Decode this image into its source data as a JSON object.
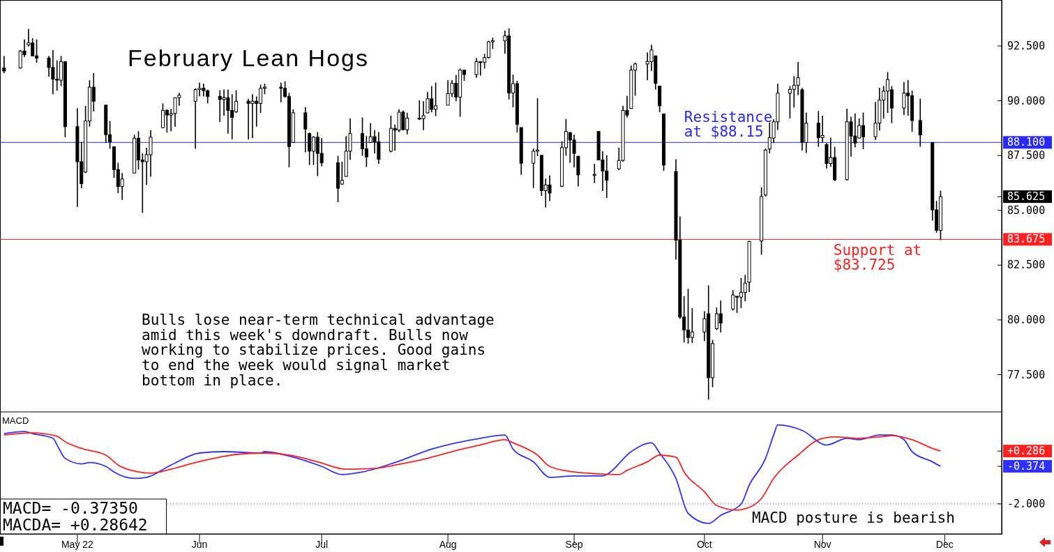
{
  "chart_data": [
    {
      "type": "candlestick",
      "title": "February Lean Hogs",
      "color": "#000000",
      "tick_labels": "y",
      "xlim": [
        "2022-04-13",
        "2022-12-15"
      ],
      "ylim": [
        75.8,
        94.6
      ],
      "yticks": [
        {
          "value": 77.5,
          "label": "77.500"
        },
        {
          "value": 80,
          "label": "80.000"
        },
        {
          "value": 82.5,
          "label": "82.500"
        },
        {
          "value": 85,
          "label": "85.000"
        },
        {
          "value": 85.625,
          "label": "85.625"
        },
        {
          "value": 87.5,
          "label": "87.500"
        },
        {
          "value": 90,
          "label": "90.000"
        },
        {
          "value": 92.5,
          "label": "92.500"
        }
      ],
      "ref_lines": [
        {
          "axis": "y",
          "value": 88.1,
          "label": "88.100",
          "color": "#2828ff"
        },
        {
          "axis": "y",
          "value": 83.675,
          "label": "83.675",
          "color": "#ff2020"
        }
      ],
      "annotations": [
        {
          "text": "Resistance\nat $88.15",
          "x": "2022-09-27",
          "y": 88.15
        },
        {
          "text": "Support at\n$83.725",
          "x": "2022-11-03",
          "y": 83.725
        },
        "Bulls lose near-term technical advantage\namid this week's downdraft. Bulls now\nworking to stabilize prices. Good gains\nto end the week would signal market\nbottom in place."
      ],
      "x": [
        "2022-04-14",
        "2022-04-18",
        "2022-04-19",
        "2022-04-20",
        "2022-04-21",
        "2022-04-22",
        "2022-04-25",
        "2022-04-26",
        "2022-04-27",
        "2022-04-28",
        "2022-04-29",
        "2022-05-02",
        "2022-05-03",
        "2022-05-04",
        "2022-05-05",
        "2022-05-06",
        "2022-05-09",
        "2022-05-10",
        "2022-05-11",
        "2022-05-12",
        "2022-05-13",
        "2022-05-16",
        "2022-05-17",
        "2022-05-18",
        "2022-05-19",
        "2022-05-20",
        "2022-05-23",
        "2022-05-24",
        "2022-05-25",
        "2022-05-26",
        "2022-05-27",
        "2022-05-31",
        "2022-06-01",
        "2022-06-02",
        "2022-06-03",
        "2022-06-06",
        "2022-06-07",
        "2022-06-08",
        "2022-06-09",
        "2022-06-10",
        "2022-06-13",
        "2022-06-14",
        "2022-06-15",
        "2022-06-16",
        "2022-06-17",
        "2022-06-21",
        "2022-06-22",
        "2022-06-23",
        "2022-06-24",
        "2022-06-27",
        "2022-06-28",
        "2022-06-29",
        "2022-06-30",
        "2022-07-01",
        "2022-07-05",
        "2022-07-06",
        "2022-07-07",
        "2022-07-08",
        "2022-07-11",
        "2022-07-12",
        "2022-07-13",
        "2022-07-14",
        "2022-07-15",
        "2022-07-18",
        "2022-07-19",
        "2022-07-20",
        "2022-07-21",
        "2022-07-22",
        "2022-07-25",
        "2022-07-26",
        "2022-07-27",
        "2022-07-28",
        "2022-07-29",
        "2022-08-01",
        "2022-08-02",
        "2022-08-03",
        "2022-08-04",
        "2022-08-05",
        "2022-08-08",
        "2022-08-09",
        "2022-08-10",
        "2022-08-11",
        "2022-08-12",
        "2022-08-15",
        "2022-08-16",
        "2022-08-17",
        "2022-08-18",
        "2022-08-19",
        "2022-08-22",
        "2022-08-23",
        "2022-08-24",
        "2022-08-25",
        "2022-08-26",
        "2022-08-29",
        "2022-08-30",
        "2022-08-31",
        "2022-09-01",
        "2022-09-02",
        "2022-09-06",
        "2022-09-07",
        "2022-09-08",
        "2022-09-09",
        "2022-09-12",
        "2022-09-13",
        "2022-09-14",
        "2022-09-15",
        "2022-09-16",
        "2022-09-19",
        "2022-09-20",
        "2022-09-21",
        "2022-09-22",
        "2022-09-23",
        "2022-09-26",
        "2022-09-27",
        "2022-09-28",
        "2022-09-29",
        "2022-09-30",
        "2022-10-03",
        "2022-10-04",
        "2022-10-05",
        "2022-10-06",
        "2022-10-07",
        "2022-10-10",
        "2022-10-11",
        "2022-10-12",
        "2022-10-13",
        "2022-10-14",
        "2022-10-17",
        "2022-10-18",
        "2022-10-19",
        "2022-10-20",
        "2022-10-21",
        "2022-10-24",
        "2022-10-25",
        "2022-10-26",
        "2022-10-27",
        "2022-10-28",
        "2022-10-31",
        "2022-11-01",
        "2022-11-02",
        "2022-11-03",
        "2022-11-04",
        "2022-11-07",
        "2022-11-08",
        "2022-11-09",
        "2022-11-10",
        "2022-11-11",
        "2022-11-14",
        "2022-11-15",
        "2022-11-16",
        "2022-11-17",
        "2022-11-18",
        "2022-11-21",
        "2022-11-22",
        "2022-11-23",
        "2022-11-25",
        "2022-11-28",
        "2022-11-29",
        "2022-11-30"
      ],
      "ohlc": [
        [
          91.5,
          92.05,
          91.26,
          91.36
        ],
        [
          91.5,
          92.32,
          91.47,
          92.27
        ],
        [
          92.27,
          92.8,
          92.0,
          92.11
        ],
        [
          92.55,
          93.28,
          92.48,
          92.64
        ],
        [
          92.64,
          92.85,
          92.05,
          92.05
        ],
        [
          92.05,
          92.8,
          91.74,
          91.95
        ],
        [
          91.95,
          92.05,
          91.1,
          91.52
        ],
        [
          91.52,
          92.32,
          90.3,
          90.99
        ],
        [
          90.99,
          91.84,
          90.46,
          90.94
        ],
        [
          90.94,
          92.05,
          90.67,
          91.79
        ],
        [
          91.79,
          91.79,
          88.34,
          88.82
        ],
        [
          88.82,
          89.66,
          85.16,
          87.22
        ],
        [
          87.22,
          88.13,
          86.01,
          86.22
        ],
        [
          86.75,
          89.77,
          86.7,
          89.08
        ],
        [
          89.08,
          90.94,
          88.82,
          90.62
        ],
        [
          90.62,
          91.26,
          89.51,
          89.98
        ],
        [
          89.8,
          89.82,
          88.08,
          88.45
        ],
        [
          88.45,
          89.08,
          87.81,
          88.13
        ],
        [
          87.9,
          87.91,
          86.48,
          86.86
        ],
        [
          86.86,
          87.17,
          85.79,
          86.09
        ],
        [
          86.09,
          86.7,
          85.48,
          86.43
        ],
        [
          86.7,
          88.45,
          86.7,
          88.29
        ],
        [
          88.29,
          88.61,
          86.86,
          87.3
        ],
        [
          87.3,
          87.6,
          84.89,
          87.22
        ],
        [
          87.22,
          87.86,
          86.16,
          87.54
        ],
        [
          87.54,
          88.66,
          86.54,
          88.34
        ],
        [
          88.77,
          89.88,
          88.77,
          89.56
        ],
        [
          89.56,
          89.61,
          88.55,
          89.35
        ],
        [
          89.35,
          89.63,
          88.61,
          89.42
        ],
        [
          89.42,
          90.14,
          88.82,
          90.14
        ],
        [
          90.14,
          90.36,
          89.77,
          90.25
        ],
        [
          89.98,
          90.57,
          87.81,
          90.51
        ],
        [
          90.51,
          90.83,
          90.2,
          90.57
        ],
        [
          90.57,
          90.78,
          90.2,
          90.46
        ],
        [
          90.46,
          90.51,
          89.88,
          90.2
        ],
        [
          90.2,
          90.48,
          89.03,
          90.06
        ],
        [
          90.06,
          90.51,
          89.32,
          90.14
        ],
        [
          90.14,
          90.51,
          88.5,
          89.56
        ],
        [
          89.56,
          90.3,
          88.24,
          89.24
        ],
        [
          89.5,
          90.48,
          89.45,
          89.98
        ],
        [
          89.98,
          90.09,
          88.24,
          89.88
        ],
        [
          89.88,
          90.3,
          88.29,
          89.98
        ],
        [
          89.98,
          90.2,
          88.82,
          89.88
        ],
        [
          89.88,
          90.73,
          89.45,
          90.57
        ],
        [
          90.57,
          90.78,
          90.3,
          90.62
        ],
        [
          90.62,
          90.83,
          89.93,
          90.57
        ],
        [
          90.57,
          90.89,
          90.14,
          90.2
        ],
        [
          90.2,
          90.36,
          86.96,
          87.91
        ],
        [
          88.1,
          89.61,
          88.08,
          89.45
        ],
        [
          89.45,
          89.72,
          87.65,
          88.71
        ],
        [
          88.5,
          88.55,
          87.07,
          87.7
        ],
        [
          87.7,
          88.39,
          87.07,
          88.34
        ],
        [
          88.34,
          88.57,
          86.56,
          87.6
        ],
        [
          87.6,
          88.29,
          87.01,
          87.17
        ],
        [
          87.17,
          87.49,
          85.37,
          86.01
        ],
        [
          86.2,
          87.22,
          86.16,
          86.37
        ],
        [
          86.55,
          88.39,
          86.54,
          87.7
        ],
        [
          87.7,
          89.19,
          87.3,
          88.5
        ],
        [
          88.5,
          89.24,
          87.49,
          87.81
        ],
        [
          87.81,
          88.39,
          86.98,
          87.44
        ],
        [
          88.1,
          88.98,
          88.07,
          88.36
        ],
        [
          88.36,
          88.66,
          87.6,
          88.13
        ],
        [
          88.13,
          88.57,
          87.12,
          87.33
        ],
        [
          87.7,
          89.32,
          87.65,
          88.74
        ],
        [
          88.74,
          88.92,
          87.72,
          88.66
        ],
        [
          88.66,
          89.61,
          88.57,
          89.48
        ],
        [
          89.48,
          89.56,
          88.66,
          88.68
        ],
        [
          88.68,
          89.45,
          88.47,
          89.21
        ],
        [
          89.21,
          90.02,
          89.14,
          89.19
        ],
        [
          89.19,
          89.98,
          88.66,
          89.32
        ],
        [
          89.45,
          90.41,
          89.42,
          90.09
        ],
        [
          90.09,
          90.67,
          89.48,
          89.61
        ],
        [
          89.61,
          90.83,
          89.3,
          89.77
        ],
        [
          89.8,
          90.94,
          89.8,
          90.33
        ],
        [
          90.33,
          90.94,
          90.17,
          90.8
        ],
        [
          90.8,
          91.18,
          89.98,
          90.17
        ],
        [
          90.17,
          91.47,
          89.27,
          91.4
        ],
        [
          91.4,
          91.42,
          90.91,
          91.2
        ],
        [
          91.2,
          91.95,
          91.05,
          91.79
        ],
        [
          91.79,
          91.79,
          91.15,
          91.76
        ],
        [
          91.76,
          92.14,
          91.47,
          91.97
        ],
        [
          91.97,
          92.74,
          91.93,
          92.69
        ],
        [
          92.69,
          92.88,
          92.37,
          92.74
        ],
        [
          92.74,
          93.2,
          92.14,
          92.96
        ],
        [
          92.96,
          93.31,
          90.06,
          90.36
        ],
        [
          90.36,
          91.2,
          89.7,
          90.78
        ],
        [
          90.78,
          90.91,
          88.55,
          88.92
        ],
        [
          88.78,
          88.78,
          86.62,
          87.15
        ],
        [
          87.15,
          87.83,
          86.02,
          87.7
        ],
        [
          87.7,
          90.12,
          87.47,
          87.75
        ],
        [
          87.51,
          87.51,
          85.66,
          85.9
        ],
        [
          85.9,
          86.45,
          85.13,
          86.16
        ],
        [
          86.16,
          86.59,
          85.42,
          85.79
        ],
        [
          86.1,
          88.15,
          86.06,
          87.86
        ],
        [
          87.86,
          89.17,
          87.49,
          88.6
        ],
        [
          88.55,
          88.57,
          87.17,
          88.21
        ],
        [
          88.21,
          88.45,
          86.96,
          87.6
        ],
        [
          87.47,
          87.47,
          86.09,
          86.62
        ],
        [
          86.62,
          87.12,
          86.24,
          86.64
        ],
        [
          88.6,
          88.61,
          87.3,
          87.3
        ],
        [
          87.3,
          87.7,
          85.88,
          86.8
        ],
        [
          86.8,
          87.51,
          85.56,
          86.37
        ],
        [
          86.9,
          87.86,
          86.83,
          87.28
        ],
        [
          87.28,
          89.77,
          87.22,
          89.56
        ],
        [
          89.56,
          90.23,
          89.24,
          89.35
        ],
        [
          89.65,
          91.61,
          89.63,
          91.4
        ],
        [
          91.4,
          91.74,
          90.23,
          91.68
        ],
        [
          91.68,
          92.21,
          90.94,
          91.79
        ],
        [
          91.79,
          92.56,
          91.36,
          92.32
        ],
        [
          92.05,
          92.05,
          90.51,
          90.8
        ],
        [
          90.67,
          90.67,
          89.48,
          89.77
        ],
        [
          89.4,
          89.4,
          86.8,
          87.07
        ],
        [
          86.77,
          87.33,
          82.75,
          83.64
        ],
        [
          83.64,
          84.72,
          80.05,
          80.13
        ],
        [
          80.13,
          81.08,
          78.97,
          79.54
        ],
        [
          79.54,
          81.42,
          78.92,
          79.2
        ],
        [
          79.2,
          80.54,
          78.95,
          79.45
        ],
        [
          79.45,
          80.4,
          79.03,
          80.05
        ],
        [
          80.28,
          81.57,
          76.36,
          77.36
        ],
        [
          77.36,
          79.09,
          76.93,
          78.92
        ],
        [
          79.6,
          80.57,
          79.54,
          80.28
        ],
        [
          80.28,
          80.88,
          79.43,
          79.86
        ],
        [
          80.5,
          81.36,
          80.43,
          81.14
        ],
        [
          81.08,
          81.08,
          80.32,
          81.04
        ],
        [
          81.04,
          81.91,
          80.54,
          81.25
        ],
        [
          81.25,
          82.05,
          80.85,
          81.68
        ],
        [
          81.72,
          83.61,
          81.27,
          83.58
        ],
        [
          83.6,
          86.05,
          82.98,
          85.63
        ],
        [
          85.7,
          87.82,
          85.63,
          87.75
        ],
        [
          87.8,
          89.01,
          87.6,
          88.32
        ],
        [
          88.3,
          89.15,
          88.07,
          89.04
        ],
        [
          89.04,
          90.78,
          88.67,
          90.35
        ],
        [
          90.35,
          90.67,
          89.19,
          90.52
        ],
        [
          90.52,
          91.12,
          89.69,
          90.71
        ],
        [
          90.71,
          91.77,
          90.26,
          91.05
        ],
        [
          90.5,
          90.58,
          87.73,
          88.1
        ],
        [
          88.1,
          89.46,
          87.62,
          88.98
        ],
        [
          88.98,
          89.53,
          87.9,
          88.32
        ],
        [
          88.32,
          89.32,
          88.1,
          88.41
        ],
        [
          88.0,
          88.07,
          86.91,
          87.14
        ],
        [
          87.14,
          88.32,
          86.99,
          87.41
        ],
        [
          87.41,
          87.9,
          86.34,
          86.39
        ],
        [
          86.4,
          89.64,
          86.37,
          89.04
        ],
        [
          89.04,
          89.27,
          87.45,
          88.39
        ],
        [
          88.39,
          89.42,
          87.87,
          88.07
        ],
        [
          88.3,
          89.19,
          88.28,
          88.87
        ],
        [
          88.87,
          89.46,
          87.79,
          88.36
        ],
        [
          88.36,
          89.95,
          88.21,
          88.98
        ],
        [
          88.98,
          90.59,
          88.64,
          90.03
        ],
        [
          90.03,
          90.67,
          89.19,
          90.44
        ],
        [
          90.44,
          91.31,
          89.44,
          90.97
        ],
        [
          90.5,
          90.67,
          88.98,
          89.67
        ],
        [
          89.67,
          90.86,
          89.35,
          90.35
        ],
        [
          90.35,
          90.94,
          89.32,
          90.23
        ],
        [
          90.23,
          90.46,
          88.59,
          89.1
        ],
        [
          89.1,
          90.1,
          87.9,
          88.44
        ],
        [
          88.1,
          88.1,
          84.53,
          85.02
        ],
        [
          85.02,
          85.43,
          83.98,
          84.09
        ],
        [
          84.09,
          85.9,
          83.64,
          85.625
        ]
      ]
    },
    {
      "type": "line",
      "title": "MACD",
      "xlim": [
        "2022-04-13",
        "2022-12-15"
      ],
      "ylim": [
        -3.3,
        1.95
      ],
      "xticks": [
        {
          "value": "2022-05-02",
          "label": "May 22"
        },
        {
          "value": "2022-06-01",
          "label": "Jun"
        },
        {
          "value": "2022-07-01",
          "label": "Jul"
        },
        {
          "value": "2022-08-01",
          "label": "Aug"
        },
        {
          "value": "2022-09-01",
          "label": "Sep"
        },
        {
          "value": "2022-10-03",
          "label": "Oct"
        },
        {
          "value": "2022-11-01",
          "label": "Nov"
        },
        {
          "value": "2022-12-01",
          "label": "Dec"
        }
      ],
      "yticks": [
        {
          "value": -2,
          "label": "-2.000"
        },
        {
          "value": -0.374,
          "label": "-0.374"
        },
        {
          "value": 0.286,
          "label": "+0.286"
        }
      ],
      "ref_lines": [
        {
          "axis": "y",
          "value": -2,
          "color": "#4040ff",
          "line_style": "dotted"
        }
      ],
      "annotations": [
        "MACD=  -0.37350",
        "MACDA= +0.28642",
        "MACD posture is bearish"
      ],
      "series": [
        {
          "color": "#3030ff",
          "x": [
            "2022-04-14",
            "2022-04-19",
            "2022-04-21",
            "2022-04-26",
            "2022-04-27",
            "2022-04-29",
            "2022-05-03",
            "2022-05-05",
            "2022-05-09",
            "2022-05-11",
            "2022-05-16",
            "2022-05-19",
            "2022-05-25",
            "2022-06-01",
            "2022-06-07",
            "2022-06-16",
            "2022-06-17",
            "2022-06-24",
            "2022-07-01",
            "2022-07-06",
            "2022-07-11",
            "2022-07-19",
            "2022-07-28",
            "2022-08-09",
            "2022-08-15",
            "2022-08-17",
            "2022-08-22",
            "2022-08-26",
            "2022-09-01",
            "2022-09-08",
            "2022-09-09",
            "2022-09-15",
            "2022-09-20",
            "2022-09-22",
            "2022-09-26",
            "2022-09-29",
            "2022-10-04",
            "2022-10-07",
            "2022-10-12",
            "2022-10-14",
            "2022-10-18",
            "2022-10-20",
            "2022-10-21",
            "2022-10-27",
            "2022-11-02",
            "2022-11-07",
            "2022-11-10",
            "2022-11-15",
            "2022-11-18",
            "2022-11-21",
            "2022-11-23",
            "2022-11-28",
            "2022-11-30"
          ],
          "values": [
            1.04,
            1.13,
            1.04,
            0.84,
            0.55,
            -0.03,
            -0.27,
            -0.21,
            -0.38,
            -0.62,
            -0.9,
            -0.85,
            -0.32,
            0.2,
            0.26,
            0.2,
            0.26,
            0.02,
            -0.38,
            -0.73,
            -0.62,
            -0.21,
            0.37,
            0.84,
            0.98,
            0.37,
            -0.18,
            -0.85,
            -0.79,
            -0.79,
            -0.73,
            0.26,
            0.64,
            0.2,
            -0.9,
            -2.41,
            -2.85,
            -2.5,
            -2.01,
            -1.19,
            -0.03,
            0.98,
            1.42,
            1.18,
            0.55,
            0.84,
            0.78,
            0.98,
            0.98,
            0.78,
            0.26,
            -0.18,
            -0.374
          ]
        },
        {
          "color": "#ff2020",
          "x": [
            "2022-04-14",
            "2022-04-21",
            "2022-04-27",
            "2022-04-29",
            "2022-05-03",
            "2022-05-09",
            "2022-05-12",
            "2022-05-17",
            "2022-05-20",
            "2022-05-25",
            "2022-05-31",
            "2022-06-06",
            "2022-06-10",
            "2022-06-17",
            "2022-06-23",
            "2022-06-30",
            "2022-07-07",
            "2022-07-14",
            "2022-07-20",
            "2022-07-27",
            "2022-08-02",
            "2022-08-09",
            "2022-08-15",
            "2022-08-17",
            "2022-08-23",
            "2022-08-26",
            "2022-09-01",
            "2022-09-07",
            "2022-09-12",
            "2022-09-14",
            "2022-09-19",
            "2022-09-22",
            "2022-09-26",
            "2022-09-28",
            "2022-10-03",
            "2022-10-06",
            "2022-10-11",
            "2022-10-13",
            "2022-10-17",
            "2022-10-20",
            "2022-10-26",
            "2022-10-31",
            "2022-11-04",
            "2022-11-10",
            "2022-11-15",
            "2022-11-18",
            "2022-11-23",
            "2022-11-28",
            "2022-11-30"
          ],
          "values": [
            0.98,
            1.07,
            0.93,
            0.69,
            0.4,
            0.11,
            -0.32,
            -0.62,
            -0.67,
            -0.5,
            -0.21,
            0.02,
            0.14,
            0.2,
            0.11,
            -0.18,
            -0.5,
            -0.47,
            -0.29,
            -0.03,
            0.26,
            0.55,
            0.78,
            0.64,
            0.11,
            -0.38,
            -0.62,
            -0.7,
            -0.73,
            -0.55,
            -0.18,
            0.11,
            0.02,
            -0.62,
            -1.48,
            -2.07,
            -2.27,
            -2.21,
            -1.77,
            -0.9,
            0.11,
            0.78,
            0.9,
            0.84,
            0.9,
            0.95,
            0.78,
            0.4,
            0.286
          ]
        }
      ]
    }
  ]
}
